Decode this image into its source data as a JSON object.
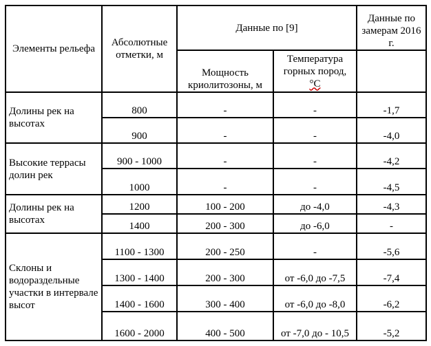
{
  "header": {
    "col1": "Элементы рельефа",
    "col2": "Абсолютные отметки, м",
    "group": "Данные по [9]",
    "col3": "Мощность криолитозоны, м",
    "col4_text": "Температура горных пород, ",
    "col4_unit": "°С",
    "col5": "Данные по замерам 2016 г."
  },
  "groups": [
    {
      "name": "Долины рек на высотах",
      "rows": [
        [
          "800",
          "-",
          "-",
          "-1,7"
        ],
        [
          "900",
          "-",
          "-",
          "-4,0"
        ]
      ]
    },
    {
      "name": "Высокие террасы долин рек",
      "rows": [
        [
          "900 - 1000",
          "-",
          "-",
          "-4,2"
        ],
        [
          "1000",
          "-",
          "-",
          "-4,5"
        ]
      ]
    },
    {
      "name": "Долины рек на высотах",
      "rows": [
        [
          "1200",
          "100 - 200",
          "до -4,0",
          "-4,3"
        ],
        [
          "1400",
          "200 - 300",
          "до -6,0",
          "-"
        ]
      ]
    },
    {
      "name": "Склоны и водораздельные участки в интервале высот",
      "rows": [
        [
          "1100 - 1300",
          "200 - 250",
          "-",
          "-5,6"
        ],
        [
          "1300 - 1400",
          "200 - 300",
          "от -6,0 до -7,5",
          "-7,4"
        ],
        [
          "1400 - 1600",
          "300 - 400",
          "от -6,0 до -8,0",
          "-6,2"
        ],
        [
          "1600 - 2000",
          "400 - 500",
          "от -7,0 до - 10,5",
          "-5,2"
        ]
      ]
    }
  ]
}
